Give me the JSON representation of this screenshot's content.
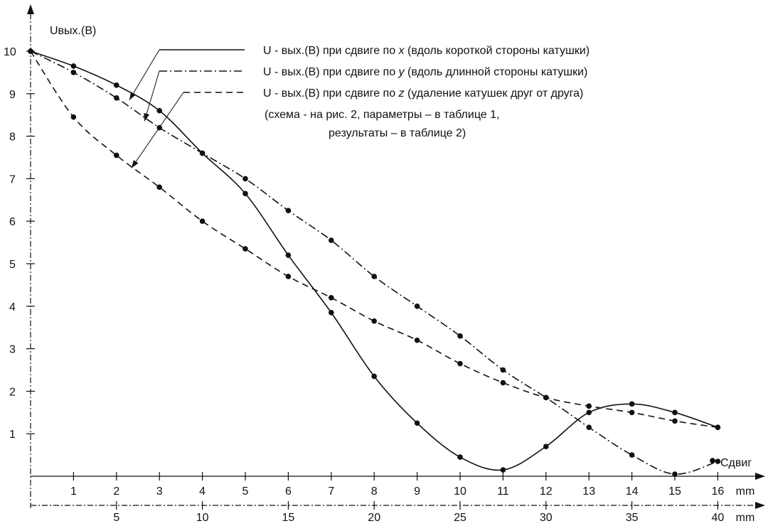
{
  "chart_data": {
    "type": "line",
    "ylabel": "Uвых.(В)",
    "xlabel": "Сдвиг",
    "x_axis_primary": {
      "unit": "mm",
      "ticks": [
        1,
        2,
        3,
        4,
        5,
        6,
        7,
        8,
        9,
        10,
        11,
        12,
        13,
        14,
        15,
        16
      ]
    },
    "x_axis_secondary": {
      "unit": "mm",
      "ticks": [
        5,
        10,
        15,
        20,
        25,
        30,
        35,
        40
      ]
    },
    "y_axis": {
      "ticks": [
        1,
        2,
        3,
        4,
        5,
        6,
        7,
        8,
        9,
        10
      ],
      "ylim": [
        0,
        10.6
      ]
    },
    "xlim": [
      0,
      17
    ],
    "grid": false,
    "series": [
      {
        "name": "U - вых.(В) при сдвиге по x (вдоль короткой стороны катушки)",
        "style": "solid",
        "x": [
          0,
          1,
          2,
          3,
          4,
          5,
          6,
          7,
          8,
          9,
          10,
          11,
          12,
          13,
          14,
          15,
          16
        ],
        "values": [
          10.0,
          9.65,
          9.2,
          8.6,
          7.6,
          6.65,
          5.2,
          3.85,
          2.35,
          1.25,
          0.45,
          0.15,
          0.7,
          1.5,
          1.7,
          1.5,
          1.15
        ]
      },
      {
        "name": "U - вых.(В) при сдвиге по y (вдоль длинной стороны катушки)",
        "style": "dashdot",
        "x": [
          0,
          1,
          2,
          3,
          4,
          5,
          6,
          7,
          8,
          9,
          10,
          11,
          12,
          13,
          14,
          15,
          16
        ],
        "values": [
          10.0,
          9.5,
          8.9,
          8.2,
          7.6,
          7.0,
          6.25,
          5.55,
          4.7,
          4.0,
          3.3,
          2.5,
          1.85,
          1.15,
          0.5,
          0.05,
          0.35
        ]
      },
      {
        "name": "U - вых.(В) при сдвиге по z (удаление катушек друг от друга)",
        "style": "dashed",
        "x": [
          0,
          1,
          2,
          3,
          4,
          5,
          6,
          7,
          8,
          9,
          10,
          11,
          12,
          13,
          14,
          15,
          16
        ],
        "values": [
          10.0,
          8.45,
          7.55,
          6.8,
          6.0,
          5.35,
          4.7,
          4.2,
          3.65,
          3.2,
          2.65,
          2.2,
          1.85,
          1.65,
          1.5,
          1.3,
          1.15
        ]
      }
    ],
    "legend_names": [
      {
        "prefix": "U - вых.(В) при сдвиге по ",
        "var": "x",
        "suffix": " (вдоль короткой стороны катушки)"
      },
      {
        "prefix": "U - вых.(В) при сдвиге по ",
        "var": "y",
        "suffix": " (вдоль длинной стороны катушки)"
      },
      {
        "prefix": "U - вых.(В) при сдвиге по ",
        "var": "z",
        "suffix": " (удаление катушек друг от друга)"
      }
    ],
    "legend_placement": "top-right",
    "note_lines": [
      "(схема - на рис. 2, параметры – в таблице 1,",
      "результаты – в таблице 2)"
    ]
  }
}
